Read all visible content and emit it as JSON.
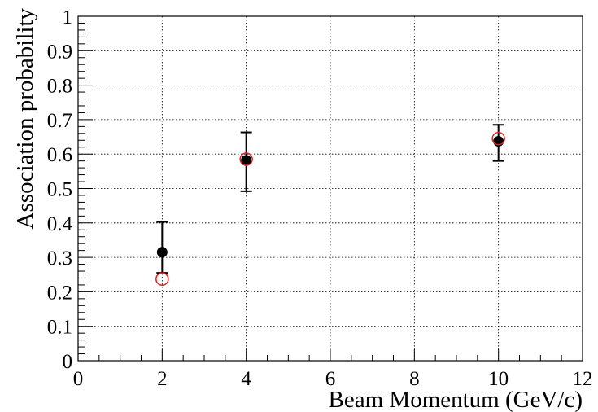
{
  "chart_data": {
    "type": "scatter",
    "title": "",
    "xlabel": "Beam Momentum (GeV/c)",
    "ylabel": "Association probability",
    "xlim": [
      0,
      12
    ],
    "ylim": [
      0,
      1
    ],
    "x_ticks": [
      0,
      2,
      4,
      6,
      8,
      10,
      12
    ],
    "y_ticks": [
      0,
      0.1,
      0.2,
      0.3,
      0.4,
      0.5,
      0.6,
      0.7,
      0.8,
      0.9,
      1
    ],
    "x_tick_labels": [
      "0",
      "2",
      "4",
      "6",
      "8",
      "10",
      "12"
    ],
    "y_tick_labels": [
      "0",
      "0.1",
      "0.2",
      "0.3",
      "0.4",
      "0.5",
      "0.6",
      "0.7",
      "0.8",
      "0.9",
      "1"
    ],
    "grid": true,
    "series": [
      {
        "marker": "filled-circle",
        "color": "#000000",
        "x": [
          2,
          4,
          10
        ],
        "y": [
          0.315,
          0.582,
          0.637
        ],
        "y_err_low": [
          0.06,
          0.09,
          0.057
        ],
        "y_err_high": [
          0.088,
          0.081,
          0.048
        ]
      },
      {
        "marker": "open-circle",
        "color": "#e8201e",
        "x": [
          2,
          4,
          10
        ],
        "y": [
          0.237,
          0.585,
          0.645
        ]
      }
    ]
  }
}
